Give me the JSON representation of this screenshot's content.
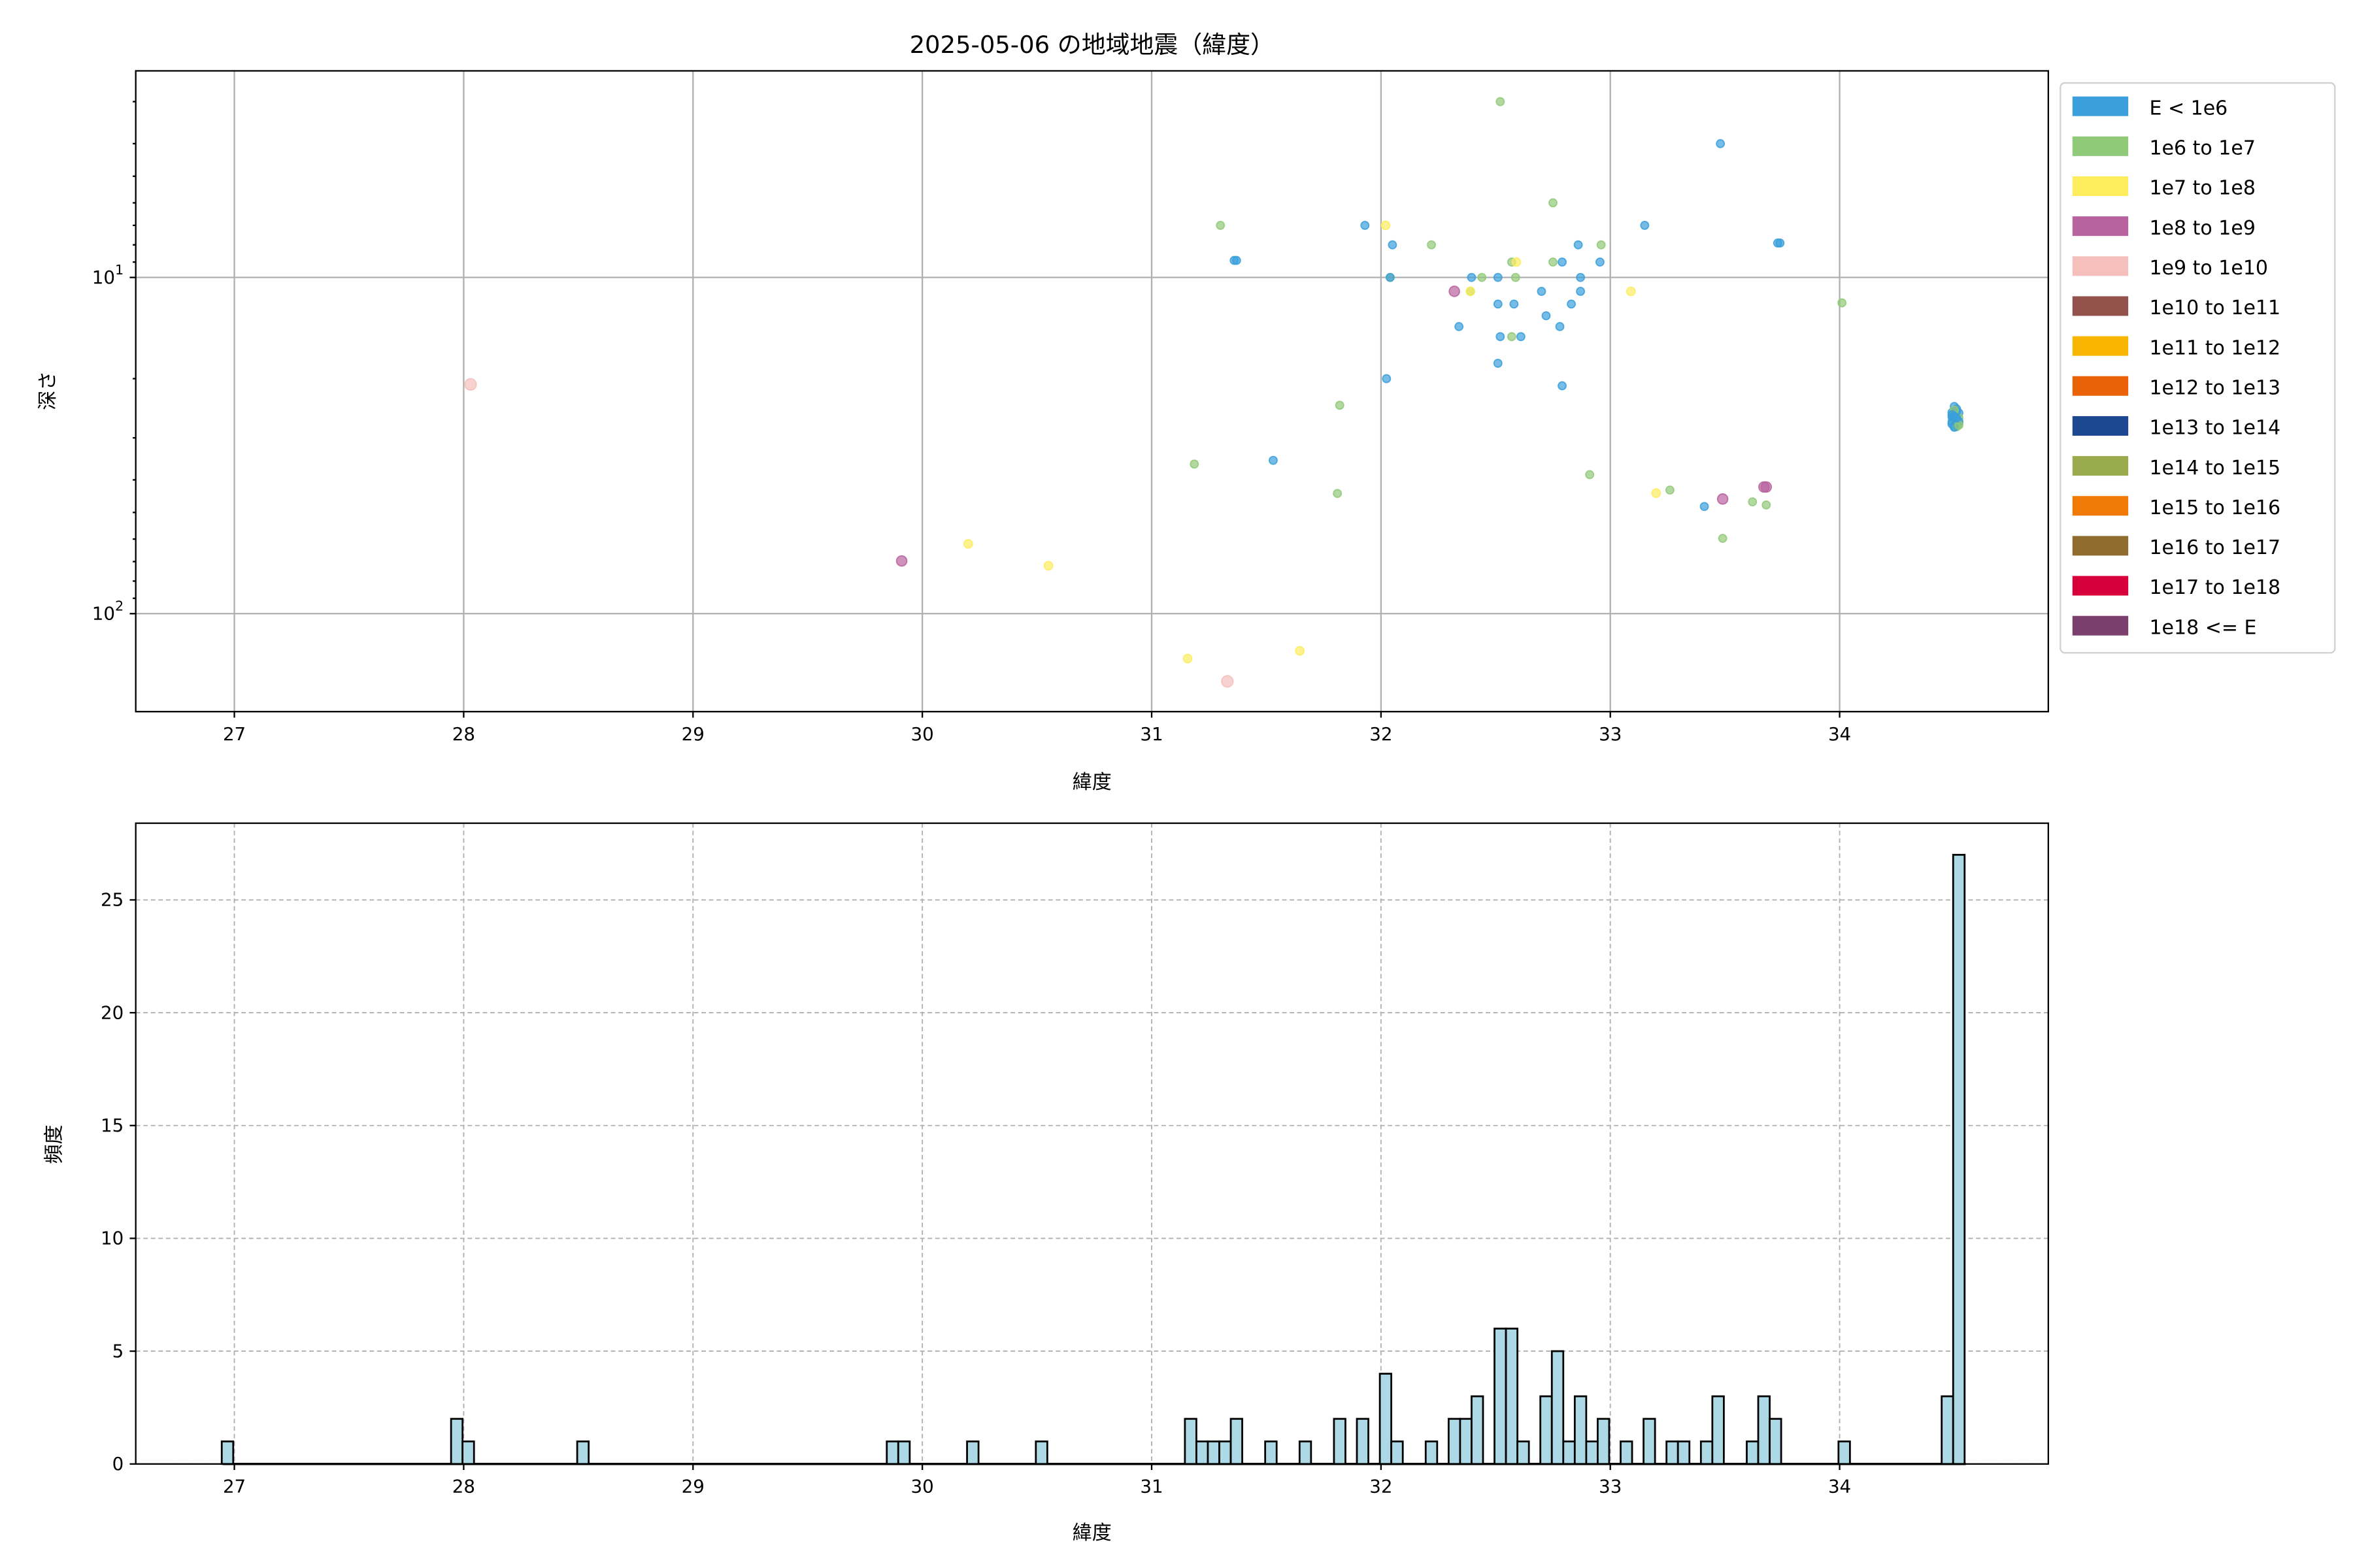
{
  "chart_data": [
    {
      "type": "scatter",
      "title": "2025-05-06 の地域地震（緯度）",
      "xlabel": "緯度",
      "ylabel": "深さ",
      "xlim": [
        26.57,
        34.91
      ],
      "ylim": [
        195.6,
        2.43
      ],
      "y_scale": "log",
      "y_inverted": true,
      "grid": true,
      "x_ticks": [
        "27",
        "28",
        "29",
        "30",
        "31",
        "32",
        "33",
        "34"
      ],
      "y_ticks": [
        {
          "value": 10,
          "base": "10",
          "exp": "1"
        },
        {
          "value": 100,
          "base": "10",
          "exp": "2"
        }
      ],
      "legend_placement": "outside-right",
      "legend": [
        {
          "label": "E < 1e6",
          "color": "#3a9fdb"
        },
        {
          "label": "1e6 to 1e7",
          "color": "#90c978"
        },
        {
          "label": "1e7 to 1e8",
          "color": "#fdec5e"
        },
        {
          "label": "1e8 to 1e9",
          "color": "#b8629f"
        },
        {
          "label": "1e9 to 1e10",
          "color": "#f5bfbc"
        },
        {
          "label": "1e10 to 1e11",
          "color": "#94524d"
        },
        {
          "label": "1e11 to 1e12",
          "color": "#f7b500"
        },
        {
          "label": "1e12 to 1e13",
          "color": "#ea6207"
        },
        {
          "label": "1e13 to 1e14",
          "color": "#1d4790"
        },
        {
          "label": "1e14 to 1e15",
          "color": "#9aab4e"
        },
        {
          "label": "1e15 to 1e16",
          "color": "#f07a05"
        },
        {
          "label": "1e16 to 1e17",
          "color": "#8f6b2d"
        },
        {
          "label": "1e17 to 1e18",
          "color": "#d8003a"
        },
        {
          "label": "1e18 <= E",
          "color": "#7b3f6e"
        }
      ],
      "points_columns": [
        "latitude",
        "depth",
        "energy_class_index"
      ],
      "points": [
        [
          32.52,
          3.0,
          1
        ],
        [
          33.48,
          4.0,
          0
        ],
        [
          32.75,
          6.0,
          1
        ],
        [
          31.93,
          7.0,
          0
        ],
        [
          32.02,
          7.0,
          2
        ],
        [
          33.15,
          7.0,
          0
        ],
        [
          31.3,
          7.0,
          1
        ],
        [
          32.05,
          8.0,
          0
        ],
        [
          32.22,
          8.0,
          1
        ],
        [
          32.86,
          8.0,
          0
        ],
        [
          32.96,
          8.0,
          1
        ],
        [
          33.74,
          7.9,
          0
        ],
        [
          33.73,
          7.9,
          0
        ],
        [
          32.57,
          9.0,
          1
        ],
        [
          32.59,
          9.0,
          2
        ],
        [
          32.75,
          9.0,
          1
        ],
        [
          32.79,
          9.0,
          0
        ],
        [
          32.955,
          9.0,
          0
        ],
        [
          31.37,
          8.9,
          0
        ],
        [
          31.36,
          8.9,
          0
        ],
        [
          32.04,
          10,
          1
        ],
        [
          32.04,
          10,
          0
        ],
        [
          32.395,
          10,
          0
        ],
        [
          32.44,
          10,
          1
        ],
        [
          32.51,
          10,
          0
        ],
        [
          32.587,
          10,
          1
        ],
        [
          32.87,
          10,
          0
        ],
        [
          32.32,
          11,
          3
        ],
        [
          32.39,
          11,
          1
        ],
        [
          32.39,
          11,
          2
        ],
        [
          32.7,
          11,
          0
        ],
        [
          32.87,
          11,
          0
        ],
        [
          33.09,
          11,
          2
        ],
        [
          32.51,
          12,
          0
        ],
        [
          32.58,
          12,
          0
        ],
        [
          32.83,
          12,
          0
        ],
        [
          34.01,
          11.9,
          1
        ],
        [
          32.72,
          13,
          0
        ],
        [
          32.34,
          14,
          0
        ],
        [
          32.78,
          14,
          0
        ],
        [
          32.52,
          15,
          0
        ],
        [
          32.57,
          15,
          1
        ],
        [
          32.61,
          15,
          0
        ],
        [
          32.51,
          18,
          0
        ],
        [
          32.024,
          20,
          0
        ],
        [
          32.79,
          21,
          0
        ],
        [
          28.03,
          20.8,
          4
        ],
        [
          31.82,
          24,
          1
        ],
        [
          31.186,
          35.9,
          1
        ],
        [
          31.53,
          35,
          0
        ],
        [
          31.81,
          43.9,
          1
        ],
        [
          32.91,
          38.6,
          1
        ],
        [
          33.2,
          43.8,
          2
        ],
        [
          33.26,
          42.9,
          1
        ],
        [
          33.41,
          48,
          0
        ],
        [
          33.62,
          46.5,
          1
        ],
        [
          33.68,
          47.5,
          1
        ],
        [
          33.68,
          42,
          3
        ],
        [
          33.67,
          42,
          3
        ],
        [
          33.49,
          45.6,
          3
        ],
        [
          33.49,
          59.7,
          1
        ],
        [
          29.91,
          69.7,
          3
        ],
        [
          30.2,
          62,
          2
        ],
        [
          30.55,
          72,
          2
        ],
        [
          31.157,
          136,
          2
        ],
        [
          31.33,
          159,
          4
        ],
        [
          31.646,
          129,
          2
        ],
        [
          34.5,
          24.2,
          0
        ],
        [
          34.51,
          24.6,
          0
        ],
        [
          34.49,
          25.2,
          0
        ],
        [
          34.5,
          25.5,
          1
        ],
        [
          34.52,
          25.3,
          0
        ],
        [
          34.51,
          25.8,
          1
        ],
        [
          34.49,
          26.0,
          0
        ],
        [
          34.5,
          26.3,
          0
        ],
        [
          34.52,
          26.1,
          1
        ],
        [
          34.51,
          26.6,
          0
        ],
        [
          34.49,
          26.9,
          0
        ],
        [
          34.5,
          27.0,
          1
        ],
        [
          34.52,
          27.2,
          1
        ],
        [
          34.51,
          27.4,
          0
        ],
        [
          34.5,
          27.6,
          0
        ],
        [
          34.49,
          27.3,
          0
        ],
        [
          34.51,
          25.0,
          0
        ],
        [
          34.5,
          24.8,
          1
        ],
        [
          34.52,
          26.8,
          0
        ],
        [
          34.5,
          26.0,
          0
        ],
        [
          34.51,
          27.8,
          1
        ],
        [
          34.49,
          25.6,
          0
        ],
        [
          34.5,
          27.9,
          0
        ],
        [
          34.52,
          27.5,
          1
        ],
        [
          34.51,
          26.2,
          0
        ],
        [
          34.5,
          25.9,
          0
        ]
      ]
    },
    {
      "type": "bar",
      "subtype": "histogram",
      "xlabel": "緯度",
      "ylabel": "頻度",
      "xlim": [
        26.57,
        34.91
      ],
      "ylim": [
        0,
        28.4
      ],
      "grid": true,
      "grid_style": "dashed",
      "bar_color": "#add8e6",
      "edge_color": "#000000",
      "x_ticks": [
        "27",
        "28",
        "29",
        "30",
        "31",
        "32",
        "33",
        "34"
      ],
      "y_ticks": [
        "0",
        "5",
        "10",
        "15",
        "20",
        "25"
      ],
      "bin_width": 0.05,
      "bins_columns": [
        "bin_center",
        "count"
      ],
      "bins": [
        [
          26.97,
          1
        ],
        [
          27.97,
          2
        ],
        [
          28.02,
          1
        ],
        [
          28.52,
          1
        ],
        [
          29.87,
          1
        ],
        [
          29.92,
          1
        ],
        [
          30.22,
          1
        ],
        [
          30.52,
          1
        ],
        [
          31.17,
          2
        ],
        [
          31.22,
          1
        ],
        [
          31.27,
          1
        ],
        [
          31.32,
          1
        ],
        [
          31.37,
          2
        ],
        [
          31.52,
          1
        ],
        [
          31.67,
          1
        ],
        [
          31.82,
          2
        ],
        [
          31.92,
          2
        ],
        [
          32.02,
          4
        ],
        [
          32.07,
          1
        ],
        [
          32.22,
          1
        ],
        [
          32.32,
          2
        ],
        [
          32.37,
          2
        ],
        [
          32.42,
          3
        ],
        [
          32.52,
          6
        ],
        [
          32.57,
          6
        ],
        [
          32.62,
          1
        ],
        [
          32.72,
          3
        ],
        [
          32.77,
          5
        ],
        [
          32.82,
          1
        ],
        [
          32.87,
          3
        ],
        [
          32.92,
          1
        ],
        [
          32.97,
          2
        ],
        [
          33.07,
          1
        ],
        [
          33.17,
          2
        ],
        [
          33.27,
          1
        ],
        [
          33.32,
          1
        ],
        [
          33.42,
          1
        ],
        [
          33.47,
          3
        ],
        [
          33.62,
          1
        ],
        [
          33.67,
          3
        ],
        [
          33.72,
          2
        ],
        [
          34.02,
          1
        ],
        [
          34.47,
          3
        ],
        [
          34.52,
          27
        ]
      ]
    }
  ]
}
